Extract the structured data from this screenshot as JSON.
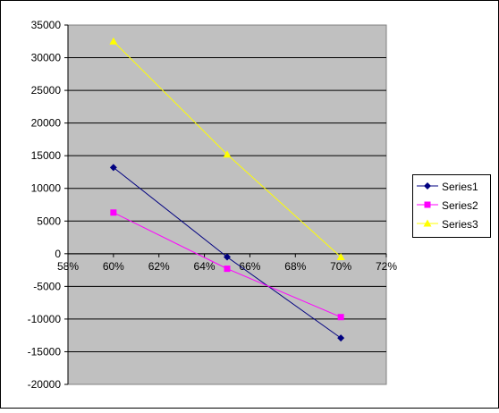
{
  "chart_data": {
    "type": "line",
    "title": "",
    "xlabel": "",
    "ylabel": "",
    "x": [
      0.6,
      0.65,
      0.7
    ],
    "xlim": [
      0.58,
      0.72
    ],
    "ylim": [
      -20000,
      35000
    ],
    "x_ticks": [
      "58%",
      "60%",
      "62%",
      "64%",
      "66%",
      "68%",
      "70%",
      "72%"
    ],
    "y_ticks": [
      "35000",
      "30000",
      "25000",
      "20000",
      "15000",
      "10000",
      "5000",
      "0",
      "-5000",
      "-10000",
      "-15000",
      "-20000"
    ],
    "grid": true,
    "legend_position": "right",
    "plot_background": "#C0C0C0",
    "series": [
      {
        "name": "Series1",
        "color": "#000080",
        "marker": "diamond",
        "values": [
          13200,
          -500,
          -12900
        ]
      },
      {
        "name": "Series2",
        "color": "#FF00FF",
        "marker": "square",
        "values": [
          6300,
          -2300,
          -9700
        ]
      },
      {
        "name": "Series3",
        "color": "#FFFF00",
        "marker": "triangle",
        "values": [
          32500,
          15200,
          -500
        ]
      }
    ]
  }
}
